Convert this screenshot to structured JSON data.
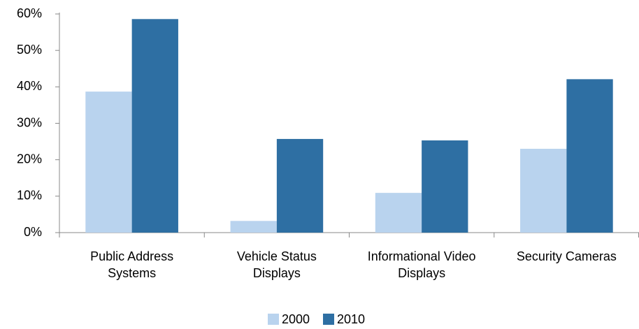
{
  "chart_data": {
    "type": "bar",
    "categories": [
      "Public Address Systems",
      "Vehicle Status Displays",
      "Informational Video Displays",
      "Security Cameras"
    ],
    "series": [
      {
        "name": "2000",
        "color": "#b9d3ee",
        "values": [
          38.7,
          3.2,
          10.9,
          23.0
        ]
      },
      {
        "name": "2010",
        "color": "#2e6fa3",
        "values": [
          58.6,
          25.7,
          25.3,
          42.1
        ]
      }
    ],
    "ylim": [
      0,
      60
    ],
    "yticks": [
      {
        "value": 0,
        "label": "0%"
      },
      {
        "value": 10,
        "label": "10%"
      },
      {
        "value": 20,
        "label": "20%"
      },
      {
        "value": 30,
        "label": "30%"
      },
      {
        "value": 40,
        "label": "40%"
      },
      {
        "value": 50,
        "label": "50%"
      },
      {
        "value": 60,
        "label": "60%"
      }
    ],
    "grid": false,
    "legend": "bottom"
  }
}
